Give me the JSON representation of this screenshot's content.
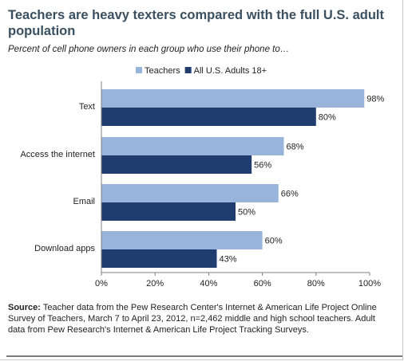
{
  "title": "Teachers are heavy texters compared with the full U.S. adult population",
  "subtitle": "Percent of cell phone owners in each group who use their phone to…",
  "source": {
    "label": "Source:",
    "text": "Teacher data from the Pew Research Center's Internet & American Life Project Online Survey of Teachers, March 7 to April 23, 2012, n=2,462 middle and high school teachers.  Adult data from Pew Research's Internet & American Life Project Tracking Surveys."
  },
  "colors": {
    "teachers": "#98b4db",
    "adults": "#1f3d6e",
    "axis": "#7f7f7f"
  },
  "chart_data": {
    "type": "bar",
    "orientation": "horizontal",
    "categories": [
      "Text",
      "Access the internet",
      "Email",
      "Download apps"
    ],
    "series": [
      {
        "name": "Teachers",
        "values": [
          98,
          68,
          66,
          60
        ]
      },
      {
        "name": "All U.S. Adults 18+",
        "values": [
          80,
          56,
          50,
          43
        ]
      }
    ],
    "value_labels": [
      [
        "98%",
        "68%",
        "66%",
        "60%"
      ],
      [
        "80%",
        "56%",
        "50%",
        "43%"
      ]
    ],
    "ticks": [
      0,
      20,
      40,
      60,
      80,
      100
    ],
    "tick_labels": [
      "0%",
      "20%",
      "40%",
      "60%",
      "80%",
      "100%"
    ],
    "xlim": [
      0,
      100
    ],
    "legend_position": "top",
    "grid": false
  }
}
